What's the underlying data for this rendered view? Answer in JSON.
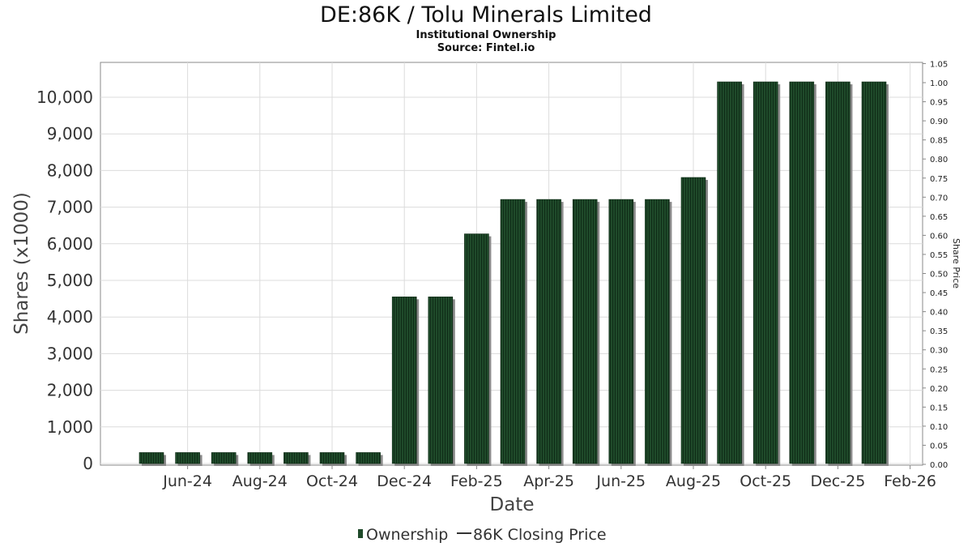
{
  "chart_data": {
    "type": "bar",
    "title": "DE:86K / Tolu Minerals Limited",
    "subtitle": "Institutional Ownership",
    "source": "Source: Fintel.io",
    "xlabel": "Date",
    "ylabel": "Shares (x1000)",
    "y2label": "Share Price",
    "ylim": [
      0,
      10900
    ],
    "y2lim": [
      0,
      1.05
    ],
    "yticks": [
      "0",
      "1,000",
      "2,000",
      "3,000",
      "4,000",
      "5,000",
      "6,000",
      "7,000",
      "8,000",
      "9,000",
      "10,000"
    ],
    "y2ticks": [
      "0.00",
      "0.05",
      "0.10",
      "0.15",
      "0.20",
      "0.25",
      "0.30",
      "0.35",
      "0.40",
      "0.45",
      "0.50",
      "0.55",
      "0.60",
      "0.65",
      "0.70",
      "0.75",
      "0.80",
      "0.85",
      "0.90",
      "0.95",
      "1.00",
      "1.05"
    ],
    "xticks": [
      "Jun-24",
      "Aug-24",
      "Oct-24",
      "Dec-24",
      "Feb-25",
      "Apr-25",
      "Jun-25",
      "Aug-25",
      "Oct-25",
      "Dec-25",
      "Feb-26"
    ],
    "grid": true,
    "legend_position": "bottom-center",
    "series": [
      {
        "name": "Ownership",
        "type": "bar",
        "color": "#1f4a2a",
        "values": [
          300,
          300,
          300,
          300,
          300,
          300,
          300,
          4550,
          4550,
          6270,
          7210,
          7210,
          7210,
          7210,
          7210,
          7810,
          10420,
          10420,
          10420,
          10420,
          10420
        ]
      },
      {
        "name": "86K Closing Price",
        "type": "line",
        "color": "#333333",
        "values": []
      }
    ]
  }
}
